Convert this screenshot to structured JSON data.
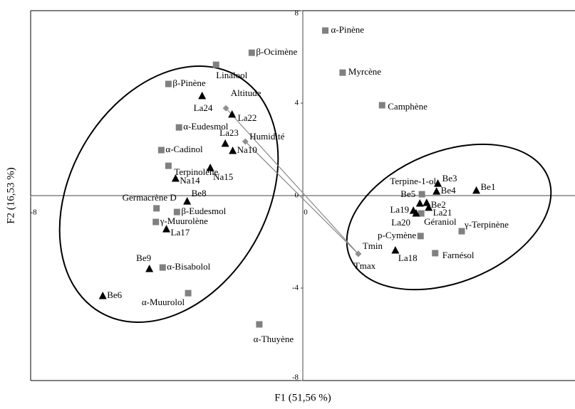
{
  "chart_data": {
    "type": "scatter",
    "xlabel": "F1 (51,56 %)",
    "ylabel": "F2 (16,53 %)",
    "xlim": [
      -8,
      8
    ],
    "ylim": [
      -8,
      8
    ],
    "xticks": [
      -8,
      0
    ],
    "yticks": [
      -8,
      -4,
      0,
      4,
      8
    ],
    "series": [
      {
        "marker": "square",
        "color": "#808080",
        "labels": [
          "α-Pinène",
          "Myrcène",
          "Camphène",
          "β-Ocimène",
          "Linalool",
          "β-Pinène",
          "α-Eudesmol",
          "α-Cadinol",
          "Terpinolène",
          "Germacrène D",
          "β-Eudesmol",
          "γ-Muurolène",
          "α-Bisabolol",
          "α-Muurolol",
          "α-Thuyène",
          "Terpine-1-ol",
          "p-Cymène",
          "Géraniol",
          "γ-Terpinène",
          "Farnésol"
        ],
        "x": [
          0.66,
          1.17,
          2.33,
          -1.5,
          -2.55,
          -3.95,
          -3.64,
          -4.16,
          -3.95,
          -4.3,
          -3.7,
          -4.32,
          -4.12,
          -3.37,
          -1.28,
          3.5,
          3.46,
          3.48,
          4.67,
          3.89
        ],
        "y": [
          7.14,
          5.32,
          3.91,
          6.18,
          5.66,
          4.83,
          2.95,
          1.97,
          1.29,
          -0.55,
          -0.71,
          -1.14,
          -3.11,
          -4.22,
          -5.57,
          0.06,
          -1.75,
          -0.77,
          -1.54,
          -2.49
        ]
      },
      {
        "marker": "triangle",
        "color": "#000000",
        "labels": [
          "La24",
          "La22",
          "La23",
          "Na10",
          "Na14",
          "Na15",
          "Be8",
          "La17",
          "Be9",
          "Be6",
          "Be1",
          "Be3",
          "Be4",
          "Be2",
          "Be5",
          "La19",
          "La21",
          "La18",
          "La20"
        ],
        "x": [
          -2.96,
          -2.08,
          -2.28,
          -2.06,
          -3.74,
          -2.72,
          -3.4,
          -4.01,
          -4.51,
          -5.88,
          5.1,
          3.97,
          3.93,
          3.64,
          3.44,
          3.25,
          3.7,
          2.72,
          3.33
        ],
        "y": [
          4.31,
          3.51,
          2.25,
          1.94,
          0.74,
          1.2,
          -0.25,
          -1.45,
          -3.17,
          -4.34,
          0.22,
          0.52,
          0.18,
          -0.31,
          -0.34,
          -0.65,
          -0.52,
          -2.37,
          -0.77
        ]
      },
      {
        "marker": "diamond",
        "color": "#909090",
        "labels": [
          "Altitude",
          "Humidité",
          "Tmin",
          "Tmax"
        ],
        "x": [
          -2.26,
          -1.69,
          1.63,
          1.63
        ],
        "y": [
          3.78,
          2.34,
          -2.52,
          -2.52
        ]
      }
    ]
  }
}
